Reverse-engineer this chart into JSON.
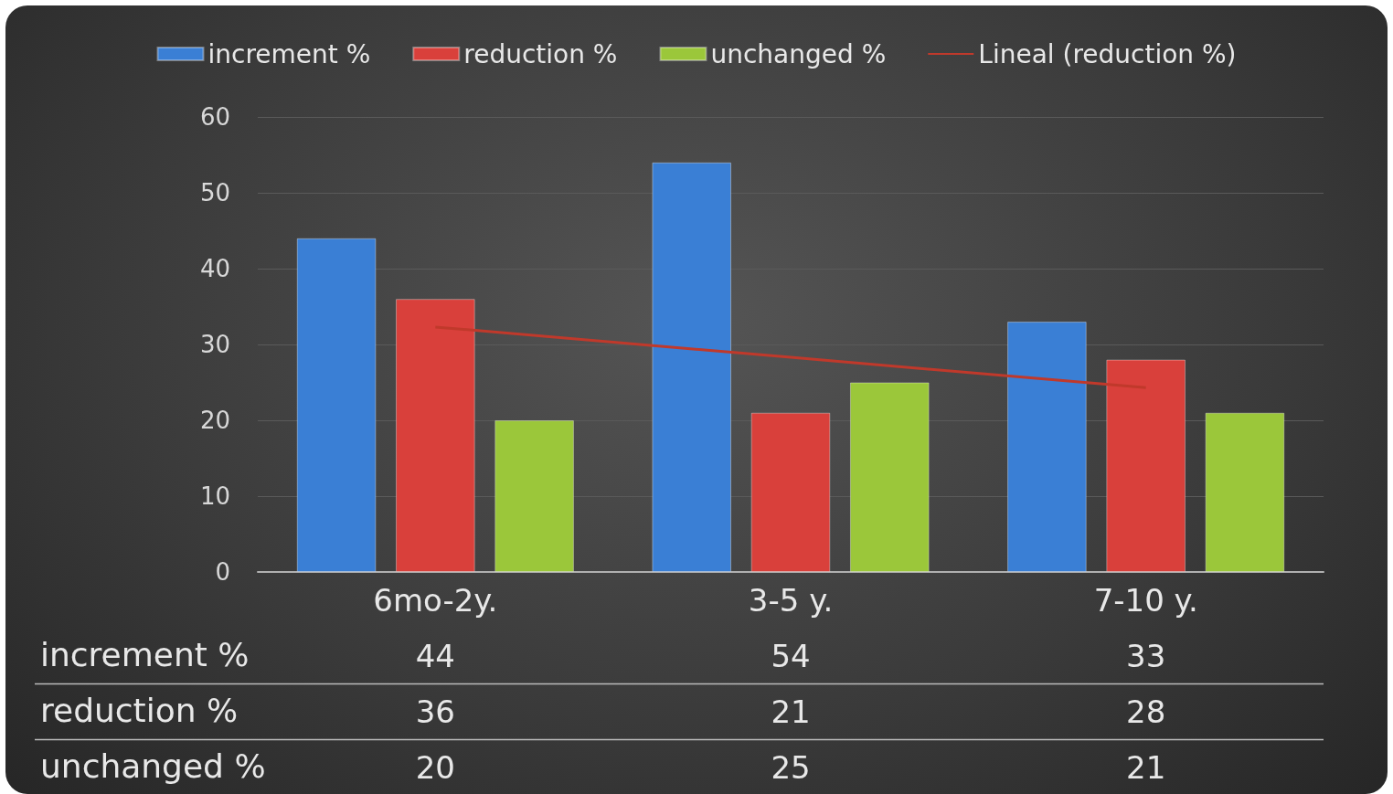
{
  "chart_data": {
    "type": "bar",
    "categories": [
      "6mo-2y.",
      "3-5 y.",
      "7-10 y."
    ],
    "series": [
      {
        "name": "increment %",
        "color": "#3a7fd5",
        "values": [
          44,
          54,
          33
        ],
        "value_labels": [
          "44",
          "54",
          "33"
        ]
      },
      {
        "name": "reduction %",
        "color": "#d9403b",
        "values": [
          36,
          21,
          28
        ],
        "value_labels": [
          "36",
          "21",
          "28"
        ]
      },
      {
        "name": "unchanged %",
        "color": "#9bc73a",
        "values": [
          20,
          25,
          21
        ],
        "value_labels": [
          "20",
          "25",
          "21"
        ]
      },
      {
        "name": "Lineal (reduction %)",
        "type": "line",
        "color": "#c0392b",
        "x": [
          "6mo-2y.",
          "3-5 y.",
          "7-10 y."
        ],
        "values": [
          32.3,
          28.3,
          24.3
        ]
      }
    ],
    "ylim": [
      0,
      60
    ],
    "yticks": [
      0,
      10,
      20,
      30,
      40,
      50,
      60
    ],
    "grid": "y",
    "legend": "top"
  }
}
